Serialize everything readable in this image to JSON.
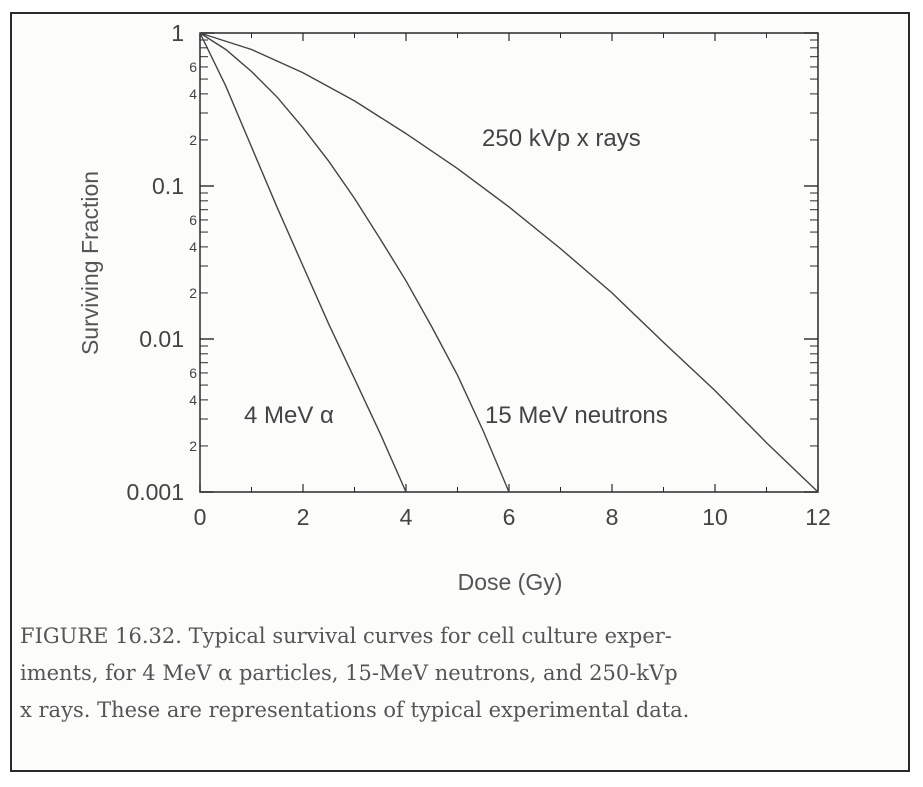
{
  "chart_data": {
    "type": "line",
    "xlabel": "Dose (Gy)",
    "ylabel": "Surviving Fraction",
    "xlim": [
      0,
      12
    ],
    "ylim": [
      0.001,
      1
    ],
    "yscale": "log",
    "x_ticks": [
      "0",
      "2",
      "4",
      "6",
      "8",
      "10",
      "12"
    ],
    "y_ticks": [
      {
        "value": 1,
        "label": "1"
      },
      {
        "value": 0.1,
        "label": "0.1"
      },
      {
        "value": 0.01,
        "label": "0.01"
      },
      {
        "value": 0.001,
        "label": "0.001"
      }
    ],
    "y_minor_labels": [
      "6",
      "4",
      "2"
    ],
    "grid": false,
    "series": [
      {
        "name": "4 MeV α",
        "points": [
          [
            0,
            1.0
          ],
          [
            0.5,
            0.45
          ],
          [
            1,
            0.18
          ],
          [
            1.5,
            0.072
          ],
          [
            2,
            0.03
          ],
          [
            2.5,
            0.0125
          ],
          [
            3,
            0.0055
          ],
          [
            3.5,
            0.0024
          ],
          [
            4,
            0.001
          ]
        ]
      },
      {
        "name": "15 MeV neutrons",
        "points": [
          [
            0,
            1.0
          ],
          [
            0.5,
            0.78
          ],
          [
            1,
            0.56
          ],
          [
            1.5,
            0.38
          ],
          [
            2,
            0.24
          ],
          [
            2.5,
            0.145
          ],
          [
            3,
            0.083
          ],
          [
            3.5,
            0.045
          ],
          [
            4,
            0.024
          ],
          [
            4.5,
            0.012
          ],
          [
            5,
            0.0058
          ],
          [
            5.5,
            0.0025
          ],
          [
            6,
            0.001
          ]
        ]
      },
      {
        "name": "250 kVp x rays",
        "points": [
          [
            0,
            1.0
          ],
          [
            1,
            0.78
          ],
          [
            2,
            0.55
          ],
          [
            3,
            0.36
          ],
          [
            4,
            0.22
          ],
          [
            5,
            0.13
          ],
          [
            6,
            0.073
          ],
          [
            7,
            0.039
          ],
          [
            8,
            0.02
          ],
          [
            9,
            0.0095
          ],
          [
            10,
            0.0046
          ],
          [
            11,
            0.0021
          ],
          [
            12,
            0.001
          ]
        ]
      }
    ]
  },
  "curve_labels": [
    "4 MeV α",
    "15 MeV neutrons",
    "250 kVp x rays"
  ],
  "caption_lines": [
    "FIGURE 16.32. Typical survival curves for cell culture exper-",
    "iments, for 4 MeV α particles, 15-MeV neutrons, and 250-kVp",
    "x rays. These are representations of typical experimental data."
  ],
  "colors": {
    "axes": "#2a2a2a",
    "curves": "#444444",
    "text": "#444444"
  }
}
